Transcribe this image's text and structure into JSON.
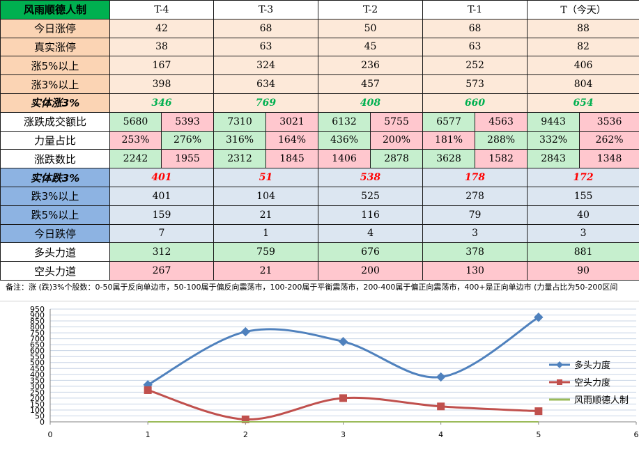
{
  "table": {
    "title": "风雨顺德人制",
    "columns": [
      "T-4",
      "T-3",
      "T-2",
      "T-1",
      "T（今天）"
    ],
    "rise_rows": [
      {
        "label": "今日涨停",
        "values": [
          "42",
          "68",
          "50",
          "68",
          "88"
        ]
      },
      {
        "label": "真实涨停",
        "values": [
          "38",
          "63",
          "45",
          "63",
          "82"
        ]
      },
      {
        "label": "涨5%以上",
        "values": [
          "167",
          "324",
          "236",
          "252",
          "406"
        ]
      },
      {
        "label": "涨3%以上",
        "values": [
          "398",
          "634",
          "457",
          "573",
          "804"
        ]
      }
    ],
    "solid_rise": {
      "label": "实体涨3%",
      "values": [
        "346",
        "769",
        "408",
        "660",
        "654"
      ]
    },
    "pair_rows": [
      {
        "label": "涨跌成交额比",
        "pairs": [
          [
            "5680",
            "5393"
          ],
          [
            "7310",
            "3021"
          ],
          [
            "6132",
            "5755"
          ],
          [
            "6577",
            "4563"
          ],
          [
            "9443",
            "3536"
          ]
        ]
      },
      {
        "label": "力量占比",
        "pairs": [
          [
            "253%",
            "276%"
          ],
          [
            "316%",
            "164%"
          ],
          [
            "436%",
            "200%"
          ],
          [
            "181%",
            "288%"
          ],
          [
            "332%",
            "262%"
          ]
        ]
      },
      {
        "label": "涨跌数比",
        "pairs": [
          [
            "2242",
            "1955"
          ],
          [
            "2312",
            "1845"
          ],
          [
            "1406",
            "2878"
          ],
          [
            "3628",
            "1582"
          ],
          [
            "2843",
            "1348"
          ]
        ]
      }
    ],
    "solid_fall": {
      "label": "实体跌3%",
      "values": [
        "401",
        "51",
        "538",
        "178",
        "172"
      ]
    },
    "fall_rows": [
      {
        "label": "跌3%以上",
        "values": [
          "401",
          "104",
          "525",
          "278",
          "155"
        ]
      },
      {
        "label": "跌5%以上",
        "values": [
          "159",
          "21",
          "116",
          "79",
          "40"
        ]
      },
      {
        "label": "今日跌停",
        "values": [
          "7",
          "1",
          "4",
          "3",
          "3"
        ]
      }
    ],
    "bull_row": {
      "label": "多头力道",
      "values": [
        "312",
        "759",
        "676",
        "378",
        "881"
      ]
    },
    "bear_row": {
      "label": "空头力道",
      "values": [
        "267",
        "21",
        "200",
        "130",
        "90"
      ]
    }
  },
  "note": "备注：涨 (跌)3%个股数：0-50属于反向单边市，50-100属于偏反向震荡市，100-200属于平衡震荡市，200-400属于偏正向震荡市，400+是正向单边市 (力量占比为50-200区间",
  "colors": {
    "bull": "#4f81bd",
    "bear": "#c0504d",
    "third": "#9bbb59"
  },
  "chart_data": {
    "type": "line",
    "x": [
      1,
      2,
      3,
      4,
      5
    ],
    "series": [
      {
        "name": "多头力度",
        "values": [
          312,
          759,
          676,
          378,
          881
        ]
      },
      {
        "name": "空头力度",
        "values": [
          267,
          21,
          200,
          130,
          90
        ]
      },
      {
        "name": "风雨顺德人制",
        "values": [
          0,
          0,
          0,
          0,
          0
        ]
      }
    ],
    "xlim": [
      0,
      6
    ],
    "ylim": [
      0,
      950
    ],
    "xticks": [
      "0",
      "1",
      "2",
      "3",
      "4",
      "5",
      "6"
    ],
    "yticks": [
      "0",
      "50",
      "100",
      "150",
      "200",
      "250",
      "300",
      "350",
      "400",
      "450",
      "500",
      "550",
      "600",
      "650",
      "700",
      "750",
      "800",
      "850",
      "900",
      "950"
    ],
    "grid": true,
    "legend": "right"
  }
}
